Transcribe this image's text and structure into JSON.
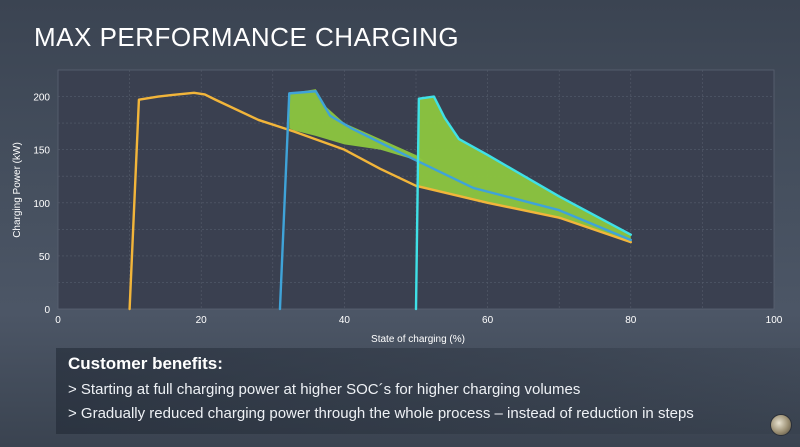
{
  "title": "MAX PERFORMANCE CHARGING",
  "chart_data": {
    "type": "line",
    "title": "",
    "xlabel": "State of charging (%)",
    "ylabel": "Charging Power (kW)",
    "xlim": [
      0,
      100
    ],
    "ylim": [
      0,
      225
    ],
    "xticks": [
      0,
      20,
      40,
      60,
      80,
      100
    ],
    "yticks": [
      0,
      50,
      100,
      150,
      200
    ],
    "grid": true,
    "series": [
      {
        "color": "#f2b53a",
        "points": [
          [
            10,
            0
          ],
          [
            11.3,
            197
          ],
          [
            14,
            200
          ],
          [
            16,
            201.5
          ],
          [
            19,
            203.5
          ],
          [
            20.5,
            202
          ],
          [
            22,
            197
          ],
          [
            28,
            178
          ],
          [
            33,
            167
          ],
          [
            40,
            150
          ],
          [
            45,
            132
          ],
          [
            50,
            116
          ],
          [
            60,
            100
          ],
          [
            70,
            86
          ],
          [
            80,
            63
          ]
        ]
      },
      {
        "color": "#3fa3d8",
        "points": [
          [
            31,
            0
          ],
          [
            32.3,
            203
          ],
          [
            36,
            205
          ],
          [
            38,
            182
          ],
          [
            41,
            170
          ],
          [
            50,
            140
          ],
          [
            58,
            114
          ],
          [
            70,
            93
          ],
          [
            80,
            65
          ]
        ]
      },
      {
        "color": "#3fe0e6",
        "points": [
          [
            50,
            0
          ],
          [
            50.4,
            198
          ],
          [
            52.5,
            200
          ],
          [
            54,
            180
          ],
          [
            56,
            160
          ],
          [
            60,
            145
          ],
          [
            70,
            106
          ],
          [
            80,
            70
          ]
        ]
      }
    ],
    "gain_areas": [
      {
        "color": "#8cc63f",
        "upper": [
          [
            32.3,
            203
          ],
          [
            36,
            207
          ],
          [
            37.5,
            190
          ],
          [
            40,
            175
          ],
          [
            45,
            160
          ],
          [
            50,
            145
          ],
          [
            51,
            140
          ]
        ],
        "lower": [
          [
            51,
            137
          ],
          [
            50,
            140
          ],
          [
            45,
            150
          ],
          [
            40,
            155
          ],
          [
            36,
            163
          ],
          [
            33,
            168
          ],
          [
            32.3,
            170
          ]
        ]
      },
      {
        "color": "#8cc63f",
        "upper": [
          [
            50.4,
            198
          ],
          [
            52.5,
            200
          ],
          [
            54,
            180
          ],
          [
            56,
            160
          ],
          [
            60,
            145
          ],
          [
            70,
            106
          ],
          [
            80,
            70
          ]
        ],
        "lower": [
          [
            80,
            63
          ],
          [
            70,
            86
          ],
          [
            60,
            100
          ],
          [
            55,
            108
          ],
          [
            50.4,
            115
          ]
        ]
      }
    ]
  },
  "benefits": {
    "heading": "Customer benefits:",
    "items": [
      "> Starting at full charging power at higher SOC´s for higher charging volumes",
      "> Gradually reduced charging power through the whole process – instead of reduction in steps"
    ]
  }
}
